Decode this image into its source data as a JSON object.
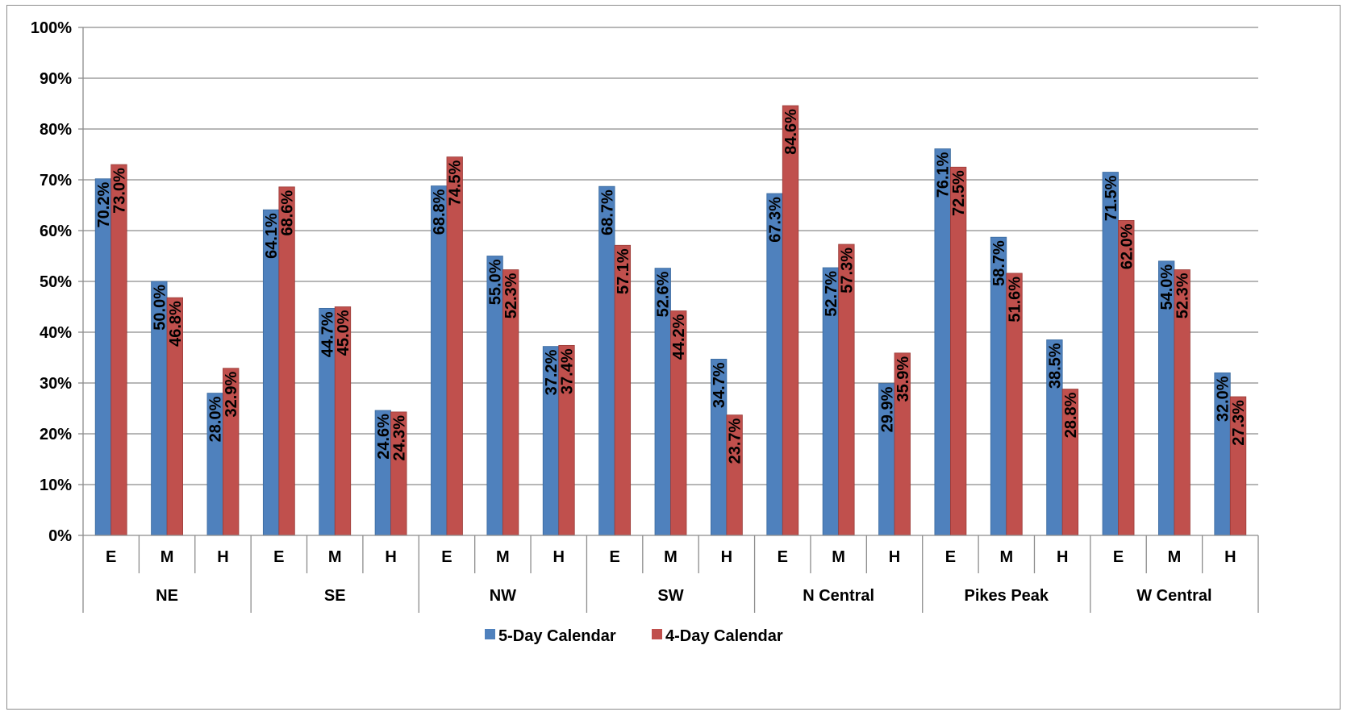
{
  "chart_data": {
    "type": "bar",
    "title": "",
    "xlabel": "",
    "ylabel": "",
    "ylim": [
      0,
      100
    ],
    "y_ticks": [
      "0%",
      "10%",
      "20%",
      "30%",
      "40%",
      "50%",
      "60%",
      "70%",
      "80%",
      "90%",
      "100%"
    ],
    "y_tick_values": [
      0,
      10,
      20,
      30,
      40,
      50,
      60,
      70,
      80,
      90,
      100
    ],
    "grid": true,
    "legend_position": "bottom",
    "groups": [
      "NE",
      "SE",
      "NW",
      "SW",
      "N Central",
      "Pikes Peak",
      "W Central"
    ],
    "sub_categories": [
      "E",
      "M",
      "H"
    ],
    "categories": [
      "NE E",
      "NE M",
      "NE H",
      "SE E",
      "SE M",
      "SE H",
      "NW E",
      "NW M",
      "NW H",
      "SW E",
      "SW M",
      "SW H",
      "N Central E",
      "N Central M",
      "N Central H",
      "Pikes Peak E",
      "Pikes Peak M",
      "Pikes Peak H",
      "W Central E",
      "W Central M",
      "W Central H"
    ],
    "series": [
      {
        "name": "5-Day Calendar",
        "color": "#4f81bd",
        "values": [
          70.2,
          50.0,
          28.0,
          64.1,
          44.7,
          24.6,
          68.8,
          55.0,
          37.2,
          68.7,
          52.6,
          34.7,
          67.3,
          52.7,
          29.9,
          76.1,
          58.7,
          38.5,
          71.5,
          54.0,
          32.0
        ],
        "labels": [
          "70.2%",
          "50.0%",
          "28.0%",
          "64.1%",
          "44.7%",
          "24.6%",
          "68.8%",
          "55.0%",
          "37.2%",
          "68.7%",
          "52.6%",
          "34.7%",
          "67.3%",
          "52.7%",
          "29.9%",
          "76.1%",
          "58.7%",
          "38.5%",
          "71.5%",
          "54.0%",
          "32.0%"
        ]
      },
      {
        "name": "4-Day Calendar",
        "color": "#c0504d",
        "values": [
          73.0,
          46.8,
          32.9,
          68.6,
          45.0,
          24.3,
          74.5,
          52.3,
          37.4,
          57.1,
          44.2,
          23.7,
          84.6,
          57.3,
          35.9,
          72.5,
          51.6,
          28.8,
          62.0,
          52.3,
          27.3
        ],
        "labels": [
          "73.0%",
          "46.8%",
          "32.9%",
          "68.6%",
          "45.0%",
          "24.3%",
          "74.5%",
          "52.3%",
          "37.4%",
          "57.1%",
          "44.2%",
          "23.7%",
          "84.6%",
          "57.3%",
          "35.9%",
          "72.5%",
          "51.6%",
          "28.8%",
          "62.0%",
          "52.3%",
          "27.3%"
        ]
      }
    ]
  }
}
